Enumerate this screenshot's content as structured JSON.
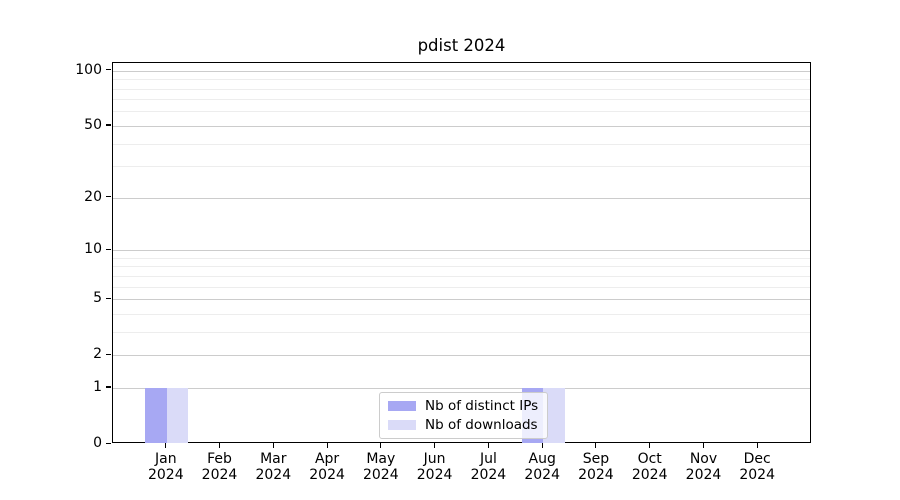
{
  "title": "pdist 2024",
  "chart_data": {
    "type": "bar",
    "title": "pdist 2024",
    "x": {
      "months": [
        "Jan",
        "Feb",
        "Mar",
        "Apr",
        "May",
        "Jun",
        "Jul",
        "Aug",
        "Sep",
        "Oct",
        "Nov",
        "Dec"
      ],
      "year": "2024"
    },
    "series": [
      {
        "name": "Nb of distinct IPs",
        "color": "#a7a8f3",
        "values": [
          1,
          0,
          0,
          0,
          0,
          0,
          0,
          1,
          0,
          0,
          0,
          0
        ]
      },
      {
        "name": "Nb of downloads",
        "color": "#dadbf8",
        "values": [
          1,
          0,
          0,
          0,
          0,
          0,
          0,
          1,
          0,
          0,
          0,
          0
        ]
      }
    ],
    "yscale": "log1p",
    "ylim": [
      0,
      110
    ],
    "yticks_labeled": [
      0,
      1,
      2,
      5,
      10,
      20,
      50,
      100
    ],
    "ytick_label_texts": [
      "0",
      "1",
      "2",
      "5",
      "10",
      "20",
      "50",
      "100"
    ],
    "yticks_minor": [
      3,
      4,
      6,
      7,
      8,
      9,
      30,
      40,
      60,
      70,
      80,
      90
    ],
    "grid": true,
    "legend_position": "lower center",
    "colors": {
      "grid_major": "#cccccc",
      "grid_minor": "#ededed",
      "spine": "#000000",
      "legend_border": "#cccccc"
    }
  }
}
